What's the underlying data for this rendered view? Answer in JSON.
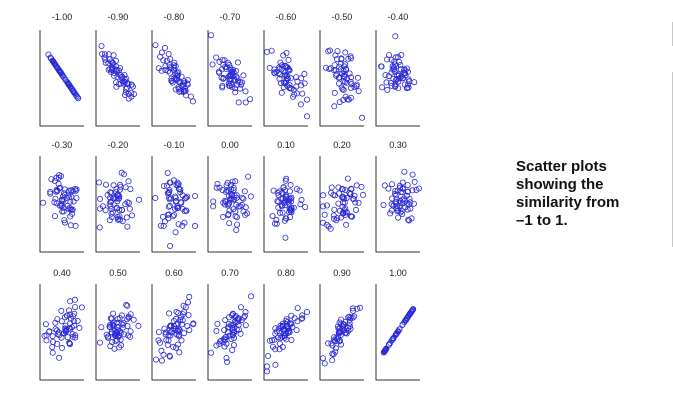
{
  "caption": {
    "lines": [
      "Scatter plots",
      "showing the",
      "similarity from",
      "–1 to 1."
    ]
  },
  "chart_data": {
    "type": "scatter",
    "title": "",
    "layout_rows": 3,
    "layout_cols": 7,
    "point_color": "#2b2bd6",
    "axis_color": "#333333",
    "points_per_panel": 60,
    "panels": [
      {
        "label": "-1.00",
        "correlation": -1.0
      },
      {
        "label": "-0.90",
        "correlation": -0.9
      },
      {
        "label": "-0.80",
        "correlation": -0.8
      },
      {
        "label": "-0.70",
        "correlation": -0.7
      },
      {
        "label": "-0.60",
        "correlation": -0.6
      },
      {
        "label": "-0.50",
        "correlation": -0.5
      },
      {
        "label": "-0.40",
        "correlation": -0.4
      },
      {
        "label": "-0.30",
        "correlation": -0.3
      },
      {
        "label": "-0.20",
        "correlation": -0.2
      },
      {
        "label": "-0.10",
        "correlation": -0.1
      },
      {
        "label": "0.00",
        "correlation": 0.0
      },
      {
        "label": "0.10",
        "correlation": 0.1
      },
      {
        "label": "0.20",
        "correlation": 0.2
      },
      {
        "label": "0.30",
        "correlation": 0.3
      },
      {
        "label": "0.40",
        "correlation": 0.4
      },
      {
        "label": "0.50",
        "correlation": 0.5
      },
      {
        "label": "0.60",
        "correlation": 0.6
      },
      {
        "label": "0.70",
        "correlation": 0.7
      },
      {
        "label": "0.80",
        "correlation": 0.8
      },
      {
        "label": "0.90",
        "correlation": 0.9
      },
      {
        "label": "1.00",
        "correlation": 1.0
      }
    ]
  }
}
